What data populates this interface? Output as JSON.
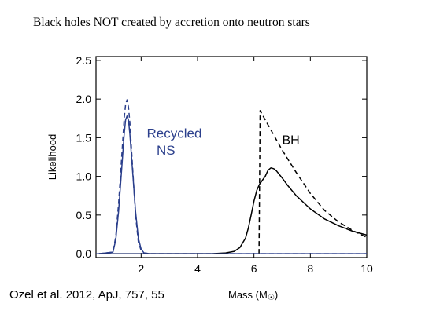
{
  "slide": {
    "title": "Black holes NOT created by accretion onto neutron stars",
    "citation": "Ozel et al. 2012, ApJ, 757, 55"
  },
  "chart_data": {
    "type": "line",
    "title": "",
    "xlabel": "Mass (M",
    "xlabel_symbol": "☉",
    "ylabel": "Likelihood",
    "xlim": [
      0.4,
      10
    ],
    "ylim": [
      -0.05,
      2.55
    ],
    "xticks": [
      2,
      4,
      6,
      8,
      10
    ],
    "yticks": [
      "0.0",
      "0.5",
      "1.0",
      "1.5",
      "2.0",
      "2.5"
    ],
    "ytick_values": [
      0.0,
      0.5,
      1.0,
      1.5,
      2.0,
      2.5
    ],
    "annotations": [
      {
        "text": "Recycled",
        "x": 2.2,
        "y": 1.5
      },
      {
        "text": "NS",
        "x": 2.55,
        "y": 1.28
      },
      {
        "text": "BH",
        "x": 7.0,
        "y": 1.42
      }
    ],
    "series": [
      {
        "id": "ns-solid",
        "color": "#2b3f8c",
        "dash": false,
        "x": [
          0.5,
          1.0,
          1.1,
          1.2,
          1.3,
          1.4,
          1.45,
          1.5,
          1.55,
          1.6,
          1.7,
          1.8,
          1.9,
          2.0,
          2.1,
          2.3,
          10.0
        ],
        "y": [
          0.0,
          0.02,
          0.18,
          0.55,
          1.05,
          1.55,
          1.73,
          1.78,
          1.73,
          1.55,
          1.05,
          0.55,
          0.2,
          0.06,
          0.01,
          0.0,
          0.0
        ]
      },
      {
        "id": "ns-dashed",
        "color": "#2b3f8c",
        "dash": true,
        "x": [
          0.5,
          1.0,
          1.1,
          1.2,
          1.3,
          1.4,
          1.45,
          1.5,
          1.55,
          1.6,
          1.7,
          1.8,
          1.9,
          2.0,
          2.1,
          2.3,
          10.0
        ],
        "y": [
          0.0,
          0.02,
          0.22,
          0.65,
          1.2,
          1.75,
          1.93,
          1.99,
          1.9,
          1.7,
          1.1,
          0.5,
          0.15,
          0.04,
          0.01,
          0.0,
          0.0
        ]
      },
      {
        "id": "bh-solid",
        "color": "#000000",
        "dash": false,
        "x": [
          0.5,
          4.5,
          5.0,
          5.3,
          5.5,
          5.7,
          5.8,
          5.9,
          6.0,
          6.1,
          6.2,
          6.3,
          6.4,
          6.5,
          6.6,
          6.7,
          6.8,
          7.0,
          7.2,
          7.5,
          8.0,
          8.5,
          9.0,
          9.5,
          10.0
        ],
        "y": [
          0.0,
          0.0,
          0.01,
          0.03,
          0.08,
          0.2,
          0.33,
          0.5,
          0.68,
          0.82,
          0.9,
          0.95,
          1.0,
          1.08,
          1.11,
          1.1,
          1.07,
          0.98,
          0.88,
          0.75,
          0.58,
          0.45,
          0.36,
          0.29,
          0.24
        ]
      },
      {
        "id": "bh-dashed",
        "color": "#000000",
        "dash": true,
        "x": [
          6.18,
          6.2,
          6.22,
          6.4,
          6.6,
          6.8,
          7.0,
          7.5,
          8.0,
          8.5,
          9.0,
          9.5,
          10.0
        ],
        "y": [
          0.0,
          0.9,
          1.85,
          1.73,
          1.6,
          1.47,
          1.34,
          1.05,
          0.78,
          0.56,
          0.41,
          0.3,
          0.21
        ]
      },
      {
        "id": "baseline",
        "color": "#2b3f8c",
        "dash": false,
        "x": [
          0.4,
          10.0
        ],
        "y": [
          0.0,
          0.0
        ]
      }
    ]
  }
}
